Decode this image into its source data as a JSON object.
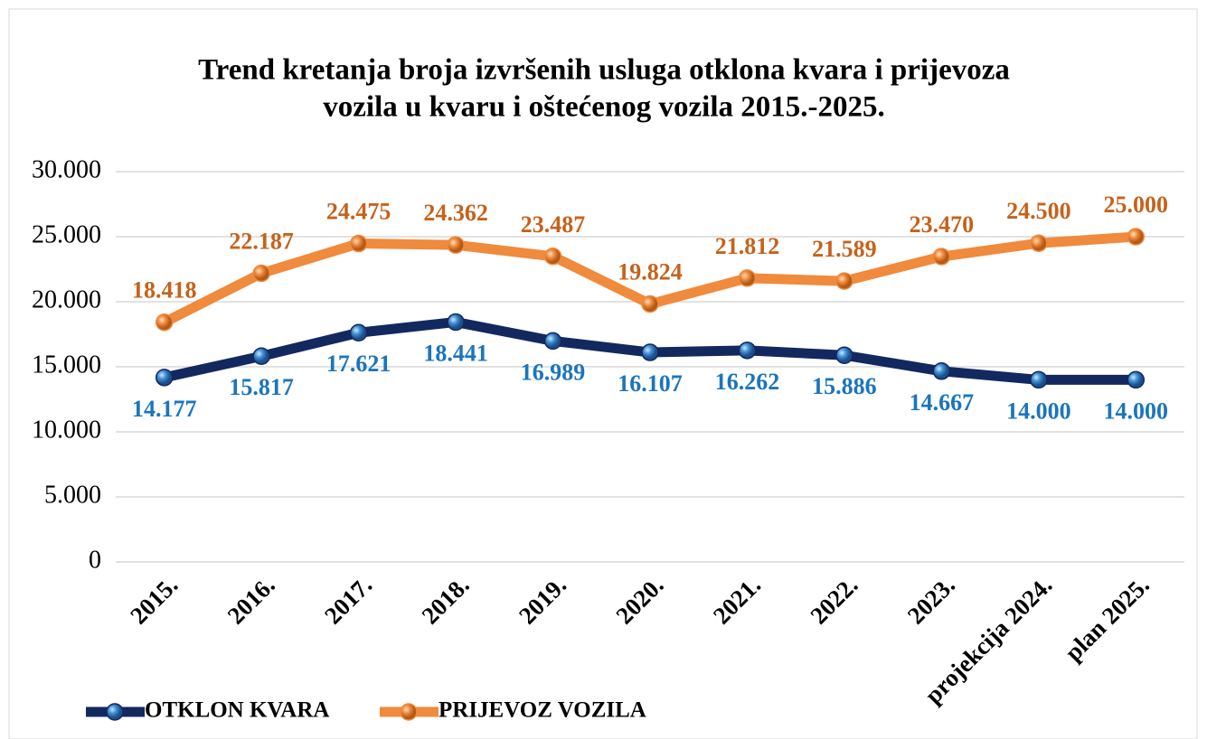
{
  "chart_data": {
    "type": "line",
    "title": [
      "Trend kretanja broja izvršenih usluga otklona kvara i prijevoza",
      "vozila u kvaru i oštećenog vozila 2015.-2025."
    ],
    "categories": [
      "2015.",
      "2016.",
      "2017.",
      "2018.",
      "2019.",
      "2020.",
      "2021.",
      "2022.",
      "2023.",
      "projekcija 2024.",
      "plan 2025."
    ],
    "series": [
      {
        "name": "OTKLON KVARA",
        "color": "#13285e",
        "label_color": "#1b75bc",
        "values": [
          14177,
          15817,
          17621,
          18441,
          16989,
          16107,
          16262,
          15886,
          14667,
          14000,
          14000
        ],
        "value_labels": [
          "14.177",
          "15.817",
          "17.621",
          "18.441",
          "16.989",
          "16.107",
          "16.262",
          "15.886",
          "14.667",
          "14.000",
          "14.000"
        ]
      },
      {
        "name": "PRIJEVOZ VOZILA",
        "color": "#f08a3c",
        "label_color": "#c5621b",
        "values": [
          18418,
          22187,
          24475,
          24362,
          23487,
          19824,
          21812,
          21589,
          23470,
          24500,
          25000
        ],
        "value_labels": [
          "18.418",
          "22.187",
          "24.475",
          "24.362",
          "23.487",
          "19.824",
          "21.812",
          "21.589",
          "23.470",
          "24.500",
          "25.000"
        ]
      }
    ],
    "ylim": [
      0,
      30000
    ],
    "yticks": [
      {
        "value": 0,
        "label": "0"
      },
      {
        "value": 5000,
        "label": "5.000"
      },
      {
        "value": 10000,
        "label": "10.000"
      },
      {
        "value": 15000,
        "label": "15.000"
      },
      {
        "value": 20000,
        "label": "20.000"
      },
      {
        "value": 25000,
        "label": "25.000"
      },
      {
        "value": 30000,
        "label": "30.000"
      }
    ],
    "grid": true,
    "legend": "bottom"
  }
}
